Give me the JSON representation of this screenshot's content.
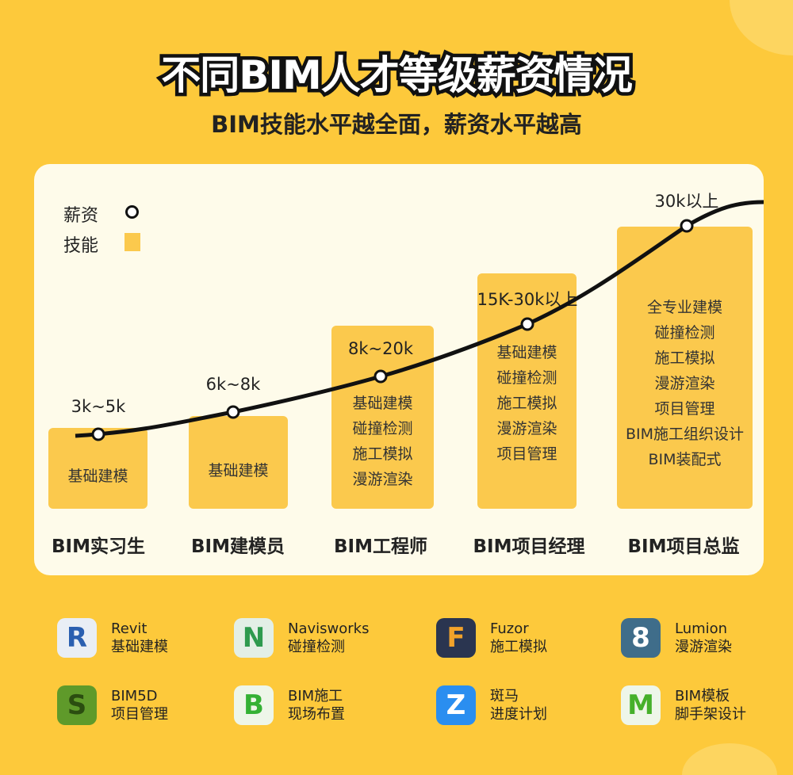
{
  "title": "不同BIM人才等级薪资情况",
  "subtitle": "BIM技能水平越全面，薪资水平越高",
  "legend": {
    "salary": "薪资",
    "skill": "技能"
  },
  "colors": {
    "background": "#fdc93b",
    "card": "#fefbea",
    "bar": "#fbc94d",
    "curve": "#111111"
  },
  "levels": [
    {
      "name": "BIM实习生",
      "salary": "3k~5k",
      "skills": [
        "基础建模"
      ]
    },
    {
      "name": "BIM建模员",
      "salary": "6k~8k",
      "skills": [
        "基础建模"
      ]
    },
    {
      "name": "BIM工程师",
      "salary": "8k~20k",
      "skills": [
        "基础建模",
        "碰撞检测",
        "施工模拟",
        "漫游渲染"
      ]
    },
    {
      "name": "BIM项目经理",
      "salary": "15K-30k以上",
      "skills": [
        "基础建模",
        "碰撞检测",
        "施工模拟",
        "漫游渲染",
        "项目管理"
      ]
    },
    {
      "name": "BIM项目总监",
      "salary": "30k以上",
      "skills": [
        "全专业建模",
        "碰撞检测",
        "施工模拟",
        "漫游渲染",
        "项目管理",
        "BIM施工组织设计",
        "BIM装配式"
      ]
    }
  ],
  "tools": [
    {
      "name": "Revit",
      "use": "基础建模",
      "icon": "revit-icon",
      "glyph": "R"
    },
    {
      "name": "Navisworks",
      "use": "碰撞检测",
      "icon": "navisworks-icon",
      "glyph": "N"
    },
    {
      "name": "Fuzor",
      "use": "施工模拟",
      "icon": "fuzor-icon",
      "glyph": "F"
    },
    {
      "name": "Lumion",
      "use": "漫游渲染",
      "icon": "lumion-icon",
      "glyph": "8"
    },
    {
      "name": "BIM5D",
      "use": "项目管理",
      "icon": "bim5d-icon",
      "glyph": "S"
    },
    {
      "name": "BIM施工",
      "use": "现场布置",
      "icon": "bim-construction-icon",
      "glyph": "B"
    },
    {
      "name": "斑马",
      "use": "进度计划",
      "icon": "zebra-icon",
      "glyph": "Z"
    },
    {
      "name": "BIM模板",
      "use": "脚手架设计",
      "icon": "bim-template-icon",
      "glyph": "M"
    }
  ]
}
